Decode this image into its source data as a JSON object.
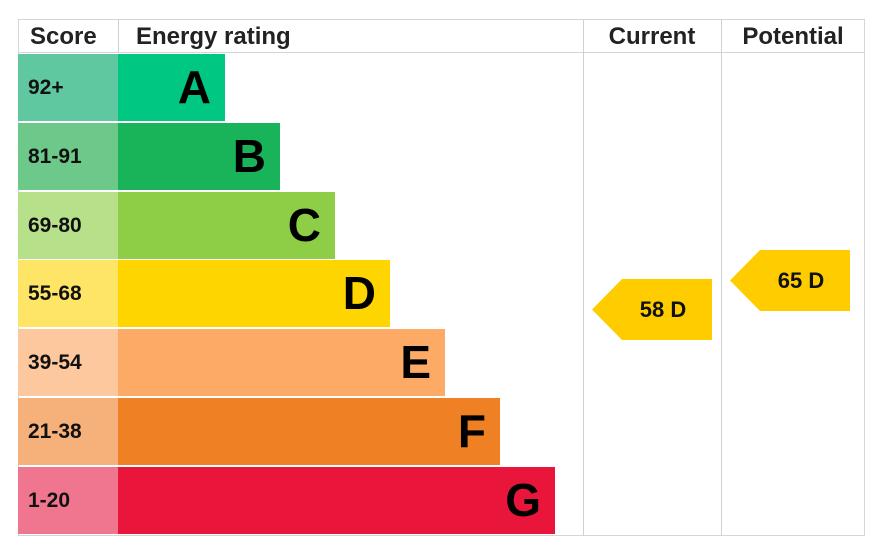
{
  "chart_data": {
    "type": "bar",
    "headers": {
      "score": "Score",
      "rating": "Energy rating",
      "current": "Current",
      "potential": "Potential"
    },
    "bands": [
      {
        "score": "92+",
        "letter": "A",
        "color": "#00c781",
        "score_color": "#5fc8a0"
      },
      {
        "score": "81-91",
        "letter": "B",
        "color": "#19b459",
        "score_color": "#6cc98a"
      },
      {
        "score": "69-80",
        "letter": "C",
        "color": "#8dce46",
        "score_color": "#b7e08a"
      },
      {
        "score": "55-68",
        "letter": "D",
        "color": "#ffd500",
        "score_color": "#ffe566"
      },
      {
        "score": "39-54",
        "letter": "E",
        "color": "#fcaa65",
        "score_color": "#fdc89d"
      },
      {
        "score": "21-38",
        "letter": "F",
        "color": "#ef8023",
        "score_color": "#f6b07a"
      },
      {
        "score": "1-20",
        "letter": "G",
        "color": "#e9153b",
        "score_color": "#f07690"
      }
    ],
    "current": {
      "value": 58,
      "band": "D",
      "label": "58 D"
    },
    "potential": {
      "value": 65,
      "band": "D",
      "label": "65 D"
    },
    "arrow_color": "#ffcc00"
  }
}
